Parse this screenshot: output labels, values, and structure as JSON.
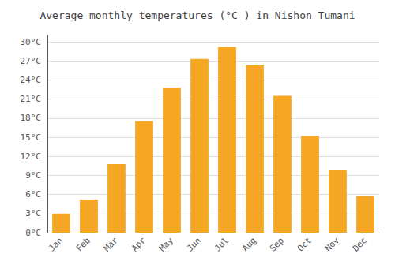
{
  "chart_data": {
    "type": "bar",
    "title": "Average monthly temperatures (°C ) in Nishon Tumani",
    "categories": [
      "Jan",
      "Feb",
      "Mar",
      "Apr",
      "May",
      "Jun",
      "Jul",
      "Aug",
      "Sep",
      "Oct",
      "Nov",
      "Dec"
    ],
    "values": [
      3.0,
      5.2,
      10.8,
      17.5,
      22.8,
      27.3,
      29.2,
      26.3,
      21.5,
      15.2,
      9.8,
      5.8
    ],
    "color": "#F5A623",
    "ylim": [
      0,
      31
    ],
    "yticks": [
      {
        "value": 0,
        "label": "0°C"
      },
      {
        "value": 3,
        "label": "3°C"
      },
      {
        "value": 6,
        "label": "6°C"
      },
      {
        "value": 9,
        "label": "9°C"
      },
      {
        "value": 12,
        "label": "12°C"
      },
      {
        "value": 15,
        "label": "15°C"
      },
      {
        "value": 18,
        "label": "18°C"
      },
      {
        "value": 21,
        "label": "21°C"
      },
      {
        "value": 24,
        "label": "24°C"
      },
      {
        "value": 27,
        "label": "27°C"
      },
      {
        "value": 30,
        "label": "30°C"
      }
    ],
    "grid": true
  }
}
